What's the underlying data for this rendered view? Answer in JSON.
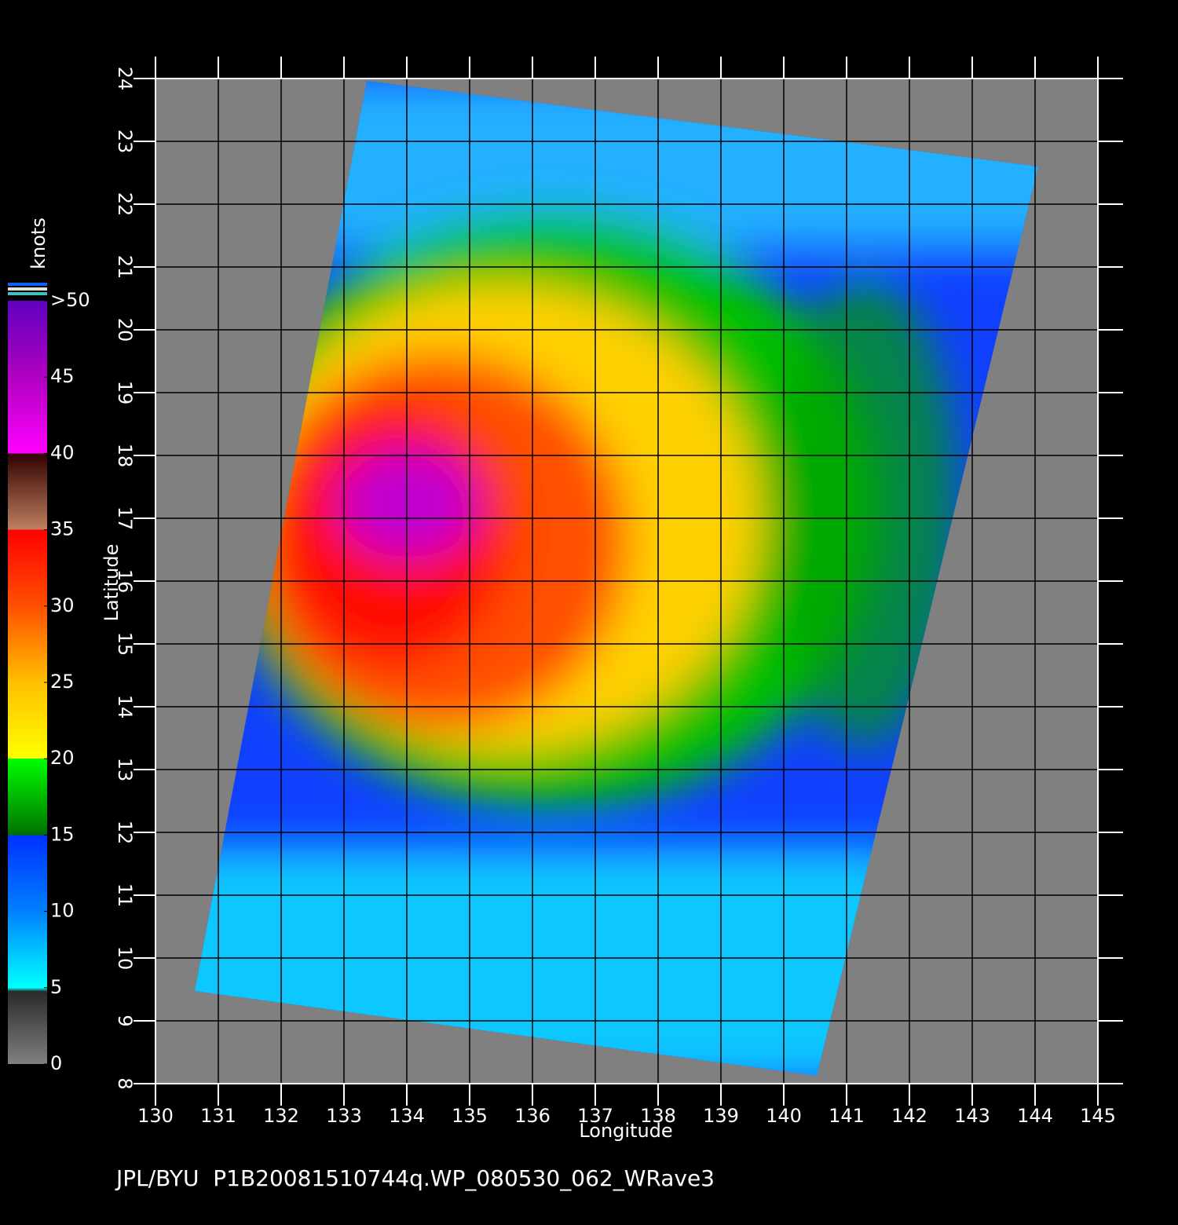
{
  "chart_data": {
    "type": "map",
    "xlabel": "Longitude",
    "ylabel": "Latitude",
    "xlim": [
      130,
      145
    ],
    "ylim": [
      8,
      24
    ],
    "xticks": [
      130,
      131,
      132,
      133,
      134,
      135,
      136,
      137,
      138,
      139,
      140,
      141,
      142,
      143,
      144,
      145
    ],
    "yticks": [
      8,
      9,
      10,
      11,
      12,
      13,
      14,
      15,
      16,
      17,
      18,
      19,
      20,
      21,
      22,
      23,
      24
    ],
    "grid": true,
    "colorbar": {
      "label": "knots",
      "clim": [
        0,
        50
      ],
      "ticks": [
        0,
        5,
        10,
        15,
        20,
        25,
        30,
        35,
        40,
        45,
        {
          "value": 50,
          "label": ">50"
        }
      ]
    },
    "footer": "JPL/BYU  P1B20081510744q.WP_080530_062_WRave3"
  }
}
